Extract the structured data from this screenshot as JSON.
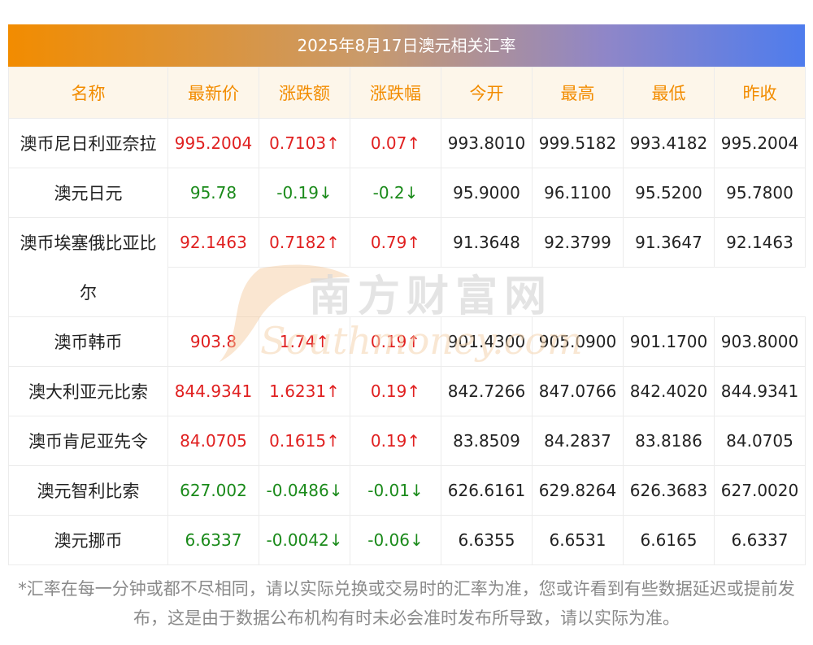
{
  "title": "2025年8月17日澳元相关汇率",
  "headers": [
    "名称",
    "最新价",
    "涨跌额",
    "涨跌幅",
    "今开",
    "最高",
    "最低",
    "昨收"
  ],
  "rows": [
    {
      "name": "澳币尼日利亚奈拉",
      "latest": "995.2004",
      "change": "0.7103↑",
      "pct": "0.07↑",
      "open": "993.8010",
      "high": "999.5182",
      "low": "993.4182",
      "prev": "995.2004",
      "dir": "up"
    },
    {
      "name": "澳元日元",
      "latest": "95.78",
      "change": "-0.19↓",
      "pct": "-0.2↓",
      "open": "95.9000",
      "high": "96.1100",
      "low": "95.5200",
      "prev": "95.7800",
      "dir": "down"
    },
    {
      "name": "澳币埃塞俄比亚比",
      "name_cont": "尔",
      "latest": "92.1463",
      "change": "0.7182↑",
      "pct": "0.79↑",
      "open": "91.3648",
      "high": "92.3799",
      "low": "91.3647",
      "prev": "92.1463",
      "dir": "up"
    },
    {
      "name": "澳币韩币",
      "latest": "903.8",
      "change": "1.74↑",
      "pct": "0.19↑",
      "open": "901.4300",
      "high": "905.0900",
      "low": "901.1700",
      "prev": "903.8000",
      "dir": "up"
    },
    {
      "name": "澳大利亚元比索",
      "latest": "844.9341",
      "change": "1.6231↑",
      "pct": "0.19↑",
      "open": "842.7266",
      "high": "847.0766",
      "low": "842.4020",
      "prev": "844.9341",
      "dir": "up"
    },
    {
      "name": "澳币肯尼亚先令",
      "latest": "84.0705",
      "change": "0.1615↑",
      "pct": "0.19↑",
      "open": "83.8509",
      "high": "84.2837",
      "low": "83.8186",
      "prev": "84.0705",
      "dir": "up"
    },
    {
      "name": "澳元智利比索",
      "latest": "627.002",
      "change": "-0.0486↓",
      "pct": "-0.01↓",
      "open": "626.6161",
      "high": "629.8264",
      "low": "626.3683",
      "prev": "627.0020",
      "dir": "down"
    },
    {
      "name": "澳元挪币",
      "latest": "6.6337",
      "change": "-0.0042↓",
      "pct": "-0.06↓",
      "open": "6.6355",
      "high": "6.6531",
      "low": "6.6165",
      "prev": "6.6337",
      "dir": "down"
    }
  ],
  "watermark": {
    "cn": "南方财富网",
    "en": "Southmoney.com"
  },
  "footnote": "*汇率在每一分钟或都不尽相同，请以实际兑换或交易时的汇率为准，您或许看到有些数据延迟或提前发布，这是由于数据公布机构有时未必会准时发布所导致，请以实际为准。",
  "colors": {
    "accent": "#f28c00",
    "up": "#e02020",
    "down": "#1a8a1a",
    "title_grad_start": "#f28c00",
    "title_grad_end": "#4e7ced"
  }
}
